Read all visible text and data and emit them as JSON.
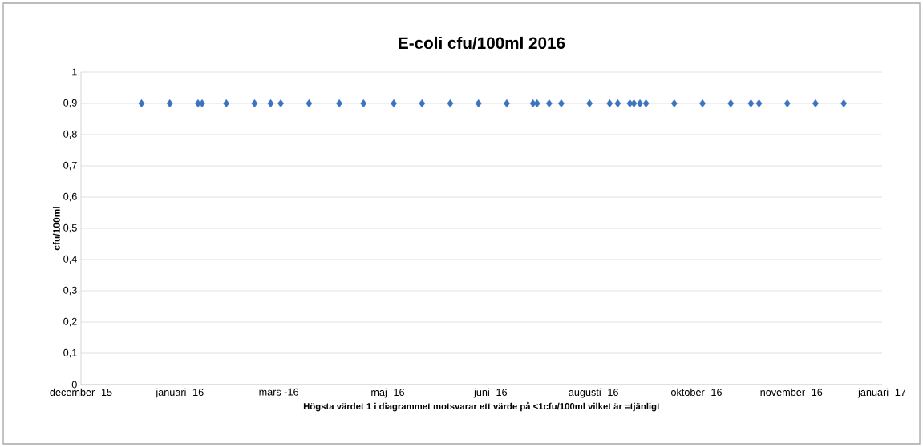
{
  "chart_data": {
    "type": "scatter",
    "title": "E-coli cfu/100ml 2016",
    "ylabel": "cfu/100ml",
    "xlabel": "Högsta värdet 1 i diagrammet motsvarar ett värde på <1cfu/100ml vilket är =tjänligt",
    "x": [
      "2015-12-31",
      "2016-01-14",
      "2016-01-28",
      "2016-01-30",
      "2016-02-11",
      "2016-02-25",
      "2016-03-04",
      "2016-03-09",
      "2016-03-23",
      "2016-04-07",
      "2016-04-19",
      "2016-05-04",
      "2016-05-18",
      "2016-06-01",
      "2016-06-15",
      "2016-06-29",
      "2016-07-12",
      "2016-07-14",
      "2016-07-20",
      "2016-07-26",
      "2016-08-09",
      "2016-08-19",
      "2016-08-23",
      "2016-08-29",
      "2016-08-31",
      "2016-09-03",
      "2016-09-06",
      "2016-09-20",
      "2016-10-04",
      "2016-10-18",
      "2016-10-28",
      "2016-11-01",
      "2016-11-15",
      "2016-11-29",
      "2016-12-13"
    ],
    "values": [
      0.9,
      0.9,
      0.9,
      0.9,
      0.9,
      0.9,
      0.9,
      0.9,
      0.9,
      0.9,
      0.9,
      0.9,
      0.9,
      0.9,
      0.9,
      0.9,
      0.9,
      0.9,
      0.9,
      0.9,
      0.9,
      0.9,
      0.9,
      0.9,
      0.9,
      0.9,
      0.9,
      0.9,
      0.9,
      0.9,
      0.9,
      0.9,
      0.9,
      0.9,
      0.9
    ],
    "color": "#3b73c0",
    "marker": "diamond",
    "grid": "y",
    "xlim": [
      "2015-12-01",
      "2017-01-01"
    ],
    "xticks": [
      {
        "value": "2015-12-01",
        "label": "december -15"
      },
      {
        "value": "2016-01-19",
        "label": "januari -16"
      },
      {
        "value": "2016-03-08",
        "label": "mars -16"
      },
      {
        "value": "2016-05-01",
        "label": "maj -16"
      },
      {
        "value": "2016-06-21",
        "label": "juni -16"
      },
      {
        "value": "2016-08-11",
        "label": "augusti -16"
      },
      {
        "value": "2016-10-01",
        "label": "oktober -16"
      },
      {
        "value": "2016-11-17",
        "label": "november -16"
      },
      {
        "value": "2017-01-01",
        "label": "januari -17"
      }
    ],
    "ylim": [
      0,
      1
    ],
    "yticks": [
      {
        "value": 0,
        "label": "0"
      },
      {
        "value": 0.1,
        "label": "0,1"
      },
      {
        "value": 0.2,
        "label": "0,2"
      },
      {
        "value": 0.3,
        "label": "0,3"
      },
      {
        "value": 0.4,
        "label": "0,4"
      },
      {
        "value": 0.5,
        "label": "0,5"
      },
      {
        "value": 0.6,
        "label": "0,6"
      },
      {
        "value": 0.7,
        "label": "0,7"
      },
      {
        "value": 0.8,
        "label": "0,8"
      },
      {
        "value": 0.9,
        "label": "0,9"
      },
      {
        "value": 1,
        "label": "1"
      }
    ]
  }
}
